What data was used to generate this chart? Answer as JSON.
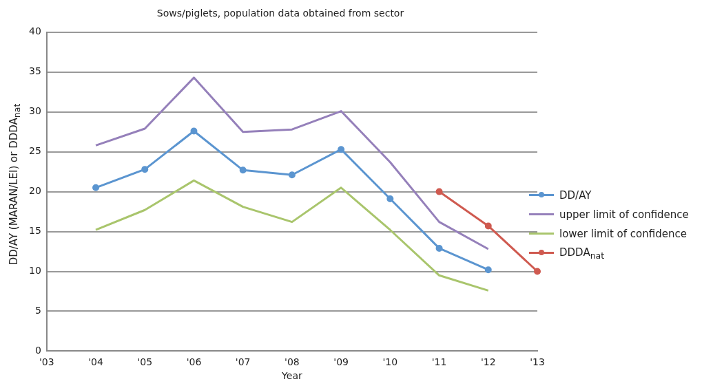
{
  "chart_data": {
    "type": "line",
    "title": "Sows/piglets, population data obtained from sector",
    "xlabel": "Year",
    "ylabel": "DD/AY (MARAN/LEI) or DDDA$_{nat}$",
    "categories": [
      "'03",
      "'04",
      "'05",
      "'06",
      "'07",
      "'08",
      "'09",
      "'10",
      "'11",
      "'12",
      "'13"
    ],
    "series": [
      {
        "name": "DD/AY",
        "color": "#5b95d0",
        "marker": "circle",
        "values": [
          null,
          20.5,
          22.8,
          27.6,
          22.7,
          22.1,
          25.3,
          19.1,
          12.9,
          10.2,
          null
        ]
      },
      {
        "name": "upper limit of confidence",
        "color": "#9580ba",
        "marker": "none",
        "values": [
          null,
          25.8,
          27.9,
          34.3,
          27.5,
          27.8,
          30.1,
          23.7,
          16.2,
          12.8,
          null
        ]
      },
      {
        "name": "lower limit of confidence",
        "color": "#a9c56c",
        "marker": "none",
        "values": [
          null,
          15.2,
          17.7,
          21.4,
          18.1,
          16.2,
          20.5,
          15.2,
          9.5,
          7.6,
          null
        ]
      },
      {
        "name": "DDDA$_{nat}$",
        "color": "#cf5a50",
        "marker": "circle",
        "values": [
          null,
          null,
          null,
          null,
          null,
          null,
          null,
          null,
          20.0,
          15.7,
          10.0
        ]
      }
    ],
    "ylim": [
      0,
      40
    ],
    "yticks": [
      0,
      5,
      10,
      15,
      20,
      25,
      30,
      35,
      40
    ],
    "grid": "y",
    "legend": "right",
    "line_style": "solid"
  }
}
